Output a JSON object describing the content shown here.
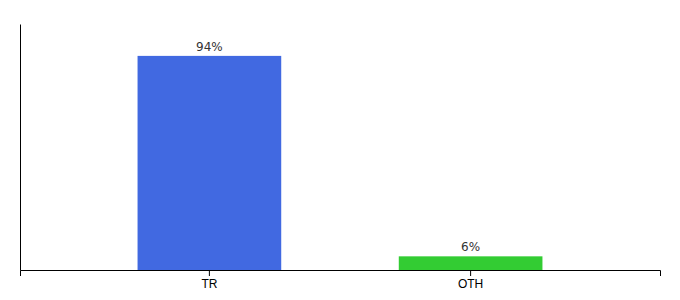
{
  "chart_data": {
    "type": "bar",
    "categories": [
      "TR",
      "OTH"
    ],
    "values": [
      94,
      6
    ],
    "value_labels": [
      "94%",
      "6%"
    ],
    "colors": [
      "#4169e1",
      "#33cc33"
    ],
    "ylim": [
      0,
      108
    ],
    "data_labels": true,
    "tick_labels": "x"
  }
}
